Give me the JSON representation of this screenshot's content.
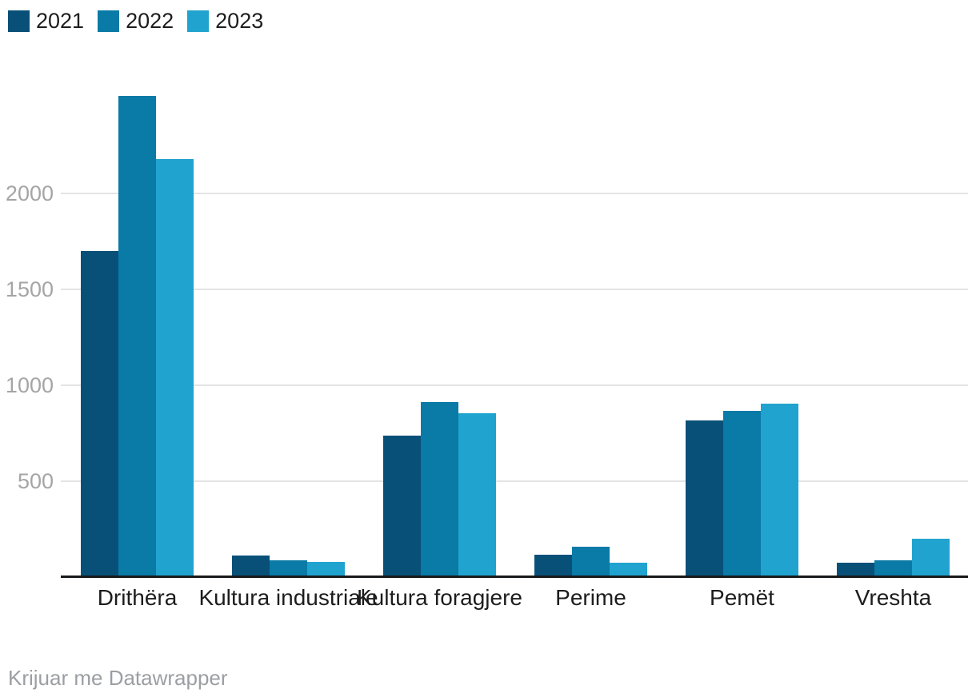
{
  "legend": {
    "items": [
      {
        "label": "2021",
        "color": "#085078"
      },
      {
        "label": "2022",
        "color": "#0a7aa7"
      },
      {
        "label": "2023",
        "color": "#21a3cf"
      }
    ]
  },
  "chart_data": {
    "type": "bar",
    "title": "",
    "categories": [
      "Drithëra",
      "Kultura industriale",
      "Kultura foragjere",
      "Perime",
      "Pemët",
      "Vreshta"
    ],
    "series": [
      {
        "name": "2021",
        "color": "#085078",
        "values": [
          1690,
          105,
          730,
          110,
          810,
          65
        ]
      },
      {
        "name": "2022",
        "color": "#0a7aa7",
        "values": [
          2500,
          80,
          905,
          150,
          860,
          80
        ]
      },
      {
        "name": "2023",
        "color": "#21a3cf",
        "values": [
          2170,
          70,
          845,
          65,
          895,
          190
        ]
      }
    ],
    "xlabel": "",
    "ylabel": "",
    "yticks": [
      500,
      1000,
      1500,
      2000
    ],
    "ylim": [
      0,
      2520
    ],
    "grid": true,
    "legend_position": "top-left",
    "gridline_color": "#e4e4e4",
    "axis_line_color": "#18191a",
    "tick_label_color": "#a5a5a5"
  },
  "footer": {
    "credit": "Krijuar me Datawrapper"
  }
}
